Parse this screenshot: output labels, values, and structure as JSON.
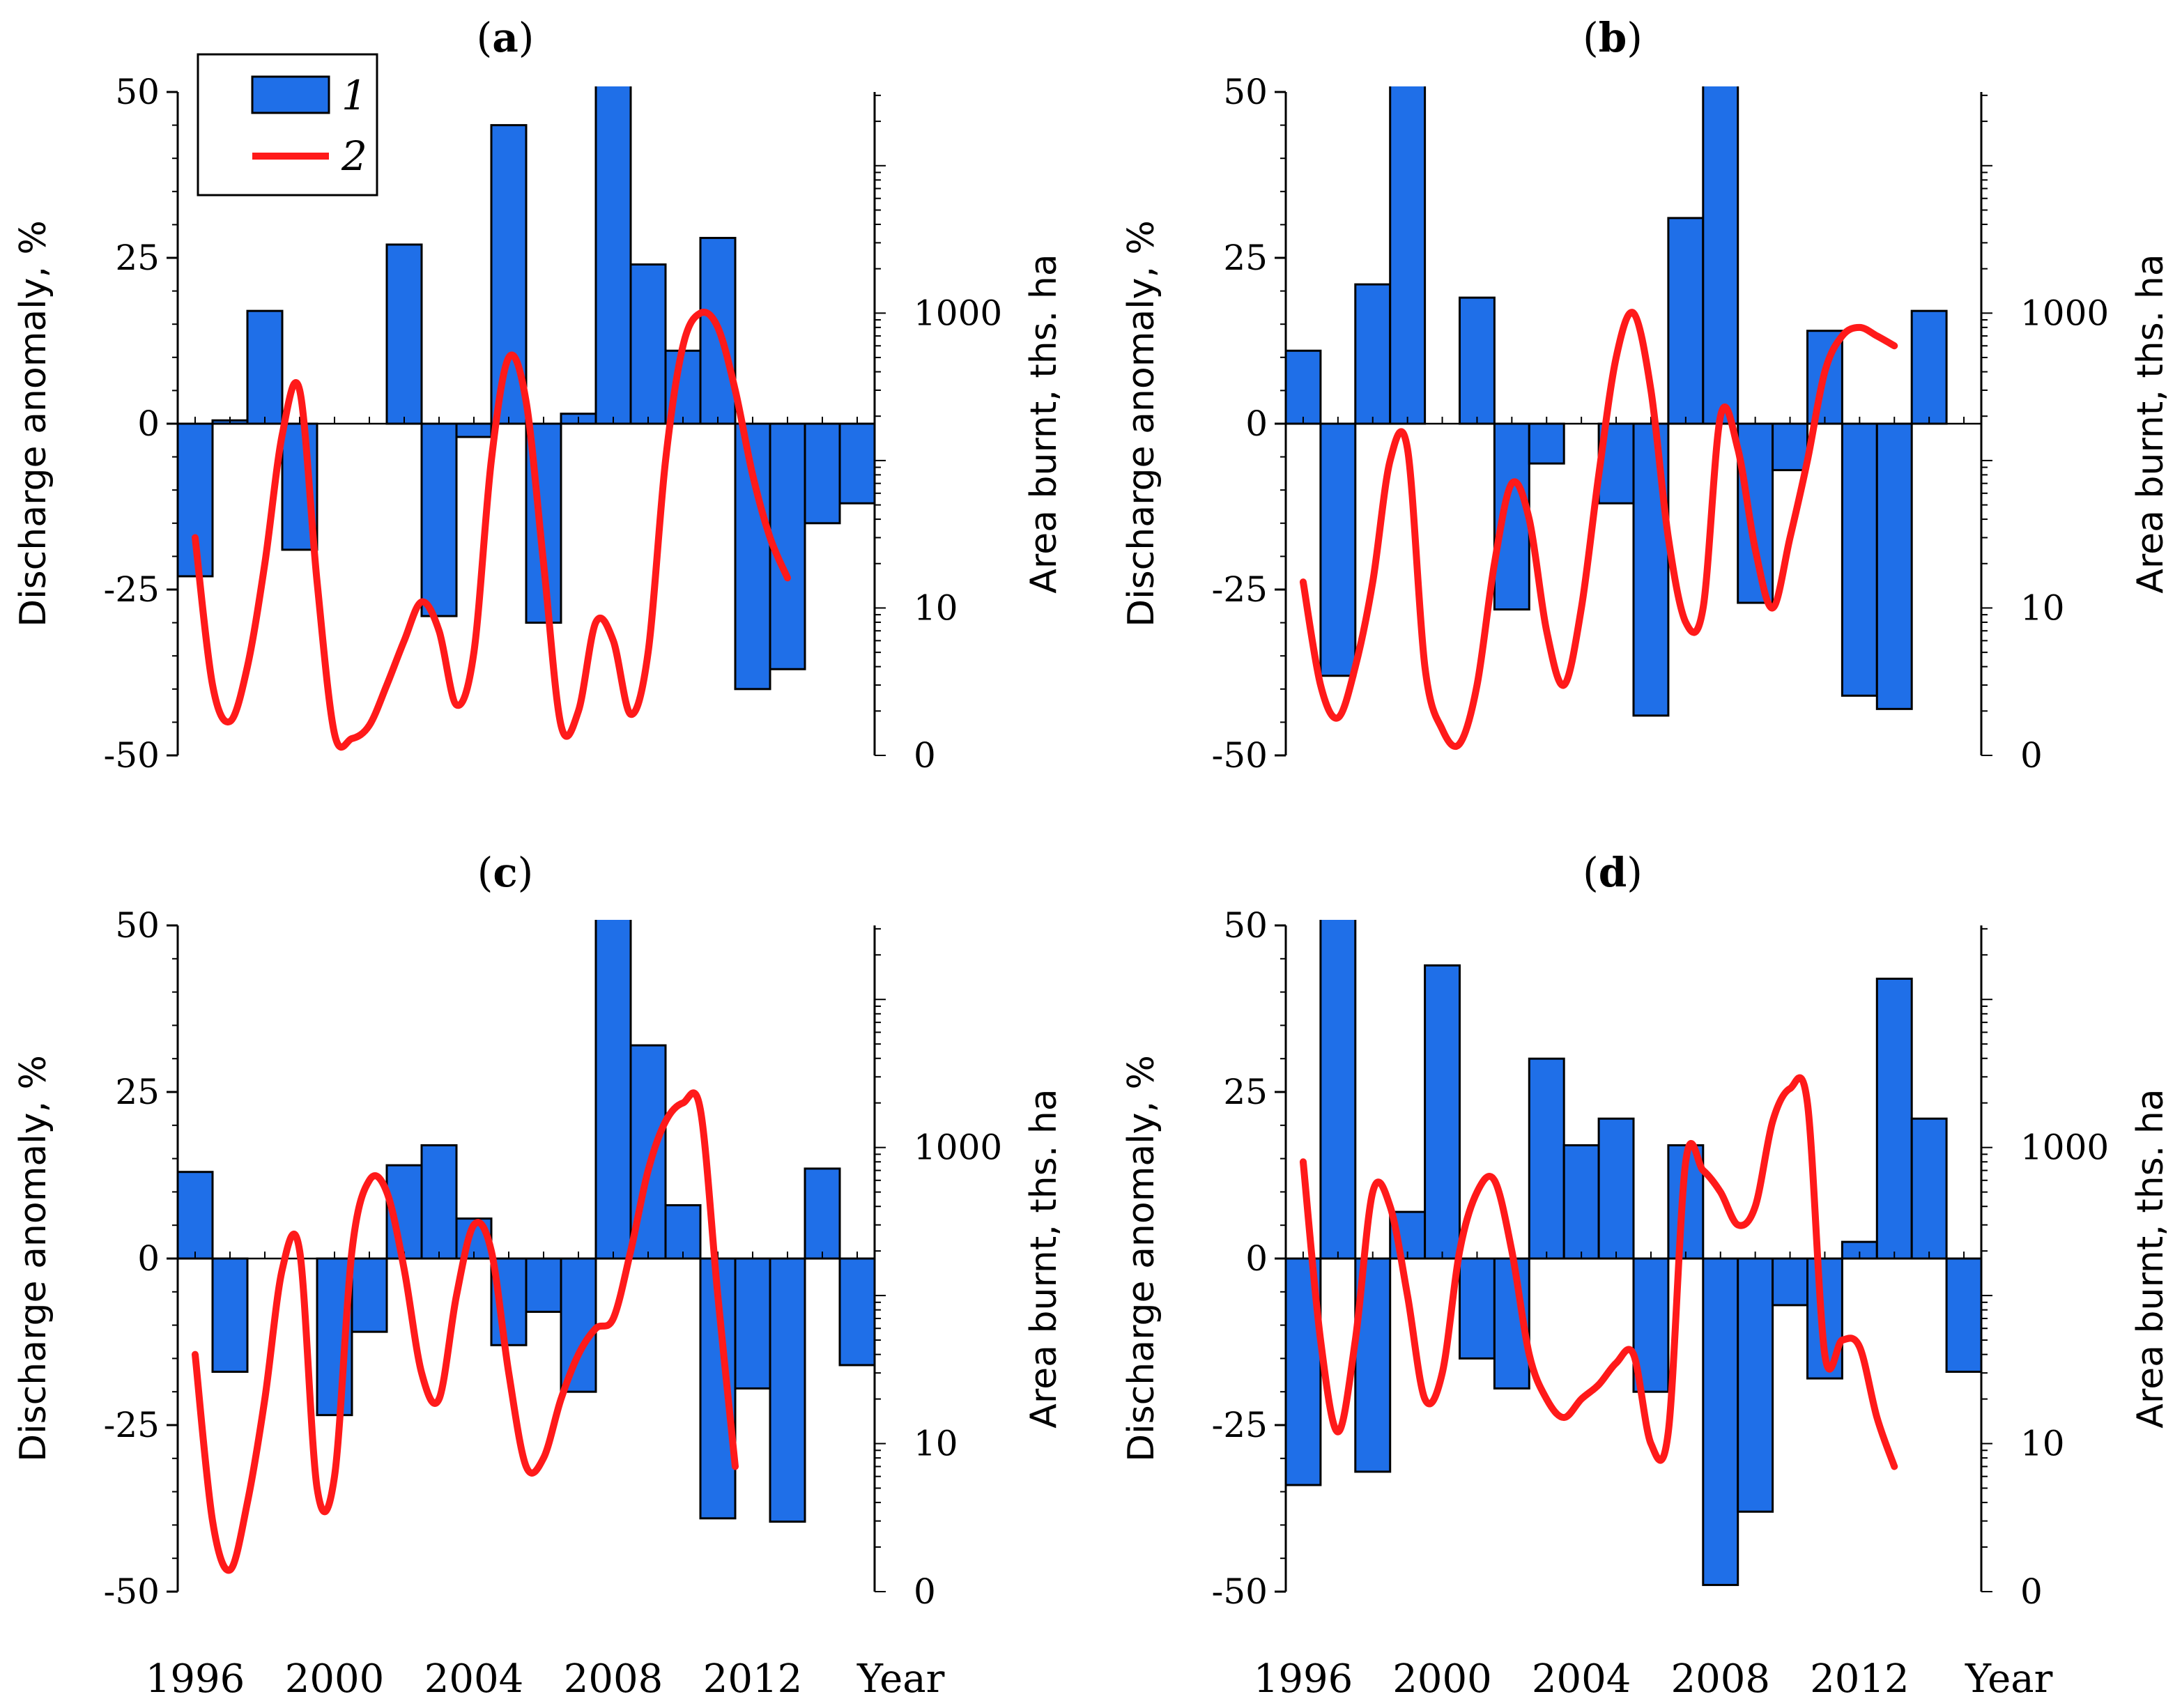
{
  "chart_data": {
    "type": "bar+line",
    "figure": {
      "x_axis_title": "Year",
      "x_tick_labels": [
        "1996",
        "2000",
        "2004",
        "2008",
        "2012"
      ],
      "legend": [
        {
          "label": "1",
          "kind": "bar",
          "color": "#1f6fe8"
        },
        {
          "label": "2",
          "kind": "line",
          "color": "#ff1a1a"
        }
      ]
    },
    "axes": {
      "left": {
        "label": "Discharge anomaly, %",
        "range": [
          -50,
          50
        ],
        "ticks": [
          "-50",
          "-25",
          "0",
          "25",
          "50"
        ],
        "tick_values": [
          -50,
          -25,
          0,
          25,
          50
        ]
      },
      "right": {
        "label": "Area burnt, ths. ha",
        "scale": "log",
        "ticks": [
          "0",
          "10",
          "1000"
        ],
        "tick_values": [
          1,
          10,
          1000
        ],
        "range_log": [
          0,
          4.5
        ]
      },
      "x": {
        "range": [
          1995.5,
          2015.5
        ]
      }
    },
    "panels": [
      {
        "title": "(a)",
        "title_letter": "a",
        "years": [
          1996,
          1997,
          1998,
          1999,
          2000,
          2001,
          2002,
          2003,
          2004,
          2005,
          2006,
          2007,
          2008,
          2009,
          2010,
          2011,
          2012,
          2013,
          2014,
          2015
        ],
        "discharge_anomaly": [
          -23,
          0.5,
          17,
          -19,
          0,
          0,
          27,
          -29,
          -2,
          45,
          -30,
          1.5,
          52,
          24,
          11,
          28,
          -40,
          -37,
          -15,
          -12
        ],
        "area_burnt": [
          [
            1996,
            30
          ],
          [
            1996.5,
            3
          ],
          [
            1997,
            1.7
          ],
          [
            1997.5,
            4
          ],
          [
            1998,
            20
          ],
          [
            1998.5,
            150
          ],
          [
            1999,
            300
          ],
          [
            1999.5,
            15
          ],
          [
            2000,
            1.4
          ],
          [
            2000.5,
            1.3
          ],
          [
            2001,
            1.6
          ],
          [
            2001.5,
            3
          ],
          [
            2002,
            6
          ],
          [
            2002.5,
            11
          ],
          [
            2003,
            7
          ],
          [
            2003.5,
            2.2
          ],
          [
            2004,
            5
          ],
          [
            2004.5,
            100
          ],
          [
            2005,
            500
          ],
          [
            2005.5,
            250
          ],
          [
            2006,
            20
          ],
          [
            2006.5,
            1.6
          ],
          [
            2007,
            2
          ],
          [
            2007.5,
            8
          ],
          [
            2008,
            6
          ],
          [
            2008.5,
            1.9
          ],
          [
            2009,
            5
          ],
          [
            2009.5,
            100
          ],
          [
            2010,
            600
          ],
          [
            2010.5,
            1000
          ],
          [
            2011,
            800
          ],
          [
            2011.5,
            300
          ],
          [
            2012,
            80
          ],
          [
            2012.5,
            30
          ],
          [
            2013,
            16
          ]
        ]
      },
      {
        "title": "(b)",
        "title_letter": "b",
        "years": [
          1996,
          1997,
          1998,
          1999,
          2000,
          2001,
          2002,
          2003,
          2004,
          2005,
          2006,
          2007,
          2008,
          2009,
          2010,
          2011,
          2012,
          2013,
          2014,
          2015
        ],
        "discharge_anomaly": [
          11,
          -38,
          21,
          52,
          0,
          19,
          -28,
          -6,
          0,
          -12,
          -44,
          31,
          52,
          -27,
          -7,
          14,
          -41,
          -43,
          17,
          0
        ],
        "area_burnt": [
          [
            1996,
            15
          ],
          [
            1996.5,
            3
          ],
          [
            1997,
            1.8
          ],
          [
            1997.5,
            4
          ],
          [
            1998,
            15
          ],
          [
            1998.5,
            100
          ],
          [
            1999,
            120
          ],
          [
            1999.5,
            4
          ],
          [
            2000,
            1.5
          ],
          [
            2000.5,
            1.2
          ],
          [
            2001,
            3
          ],
          [
            2001.5,
            20
          ],
          [
            2002,
            70
          ],
          [
            2002.5,
            40
          ],
          [
            2003,
            7
          ],
          [
            2003.5,
            3
          ],
          [
            2004,
            10
          ],
          [
            2004.5,
            80
          ],
          [
            2005,
            500
          ],
          [
            2005.5,
            1000
          ],
          [
            2006,
            300
          ],
          [
            2006.5,
            30
          ],
          [
            2007,
            8
          ],
          [
            2007.5,
            10
          ],
          [
            2008,
            200
          ],
          [
            2008.5,
            120
          ],
          [
            2009,
            25
          ],
          [
            2009.5,
            10
          ],
          [
            2010,
            30
          ],
          [
            2010.5,
            100
          ],
          [
            2011,
            400
          ],
          [
            2011.5,
            700
          ],
          [
            2012,
            800
          ],
          [
            2012.5,
            700
          ],
          [
            2013,
            600
          ]
        ]
      },
      {
        "title": "(c)",
        "title_letter": "c",
        "years": [
          1996,
          1997,
          1998,
          1999,
          2000,
          2001,
          2002,
          2003,
          2004,
          2005,
          2006,
          2007,
          2008,
          2009,
          2010,
          2011,
          2012,
          2013,
          2014,
          2015
        ],
        "discharge_anomaly": [
          13,
          -17,
          0,
          0,
          -23.5,
          -11,
          14,
          17,
          6,
          -13,
          -8,
          -20,
          52,
          32,
          8,
          -39,
          -19.5,
          -39.5,
          13.5,
          -16
        ],
        "area_burnt": [
          [
            1996,
            40
          ],
          [
            1996.5,
            3
          ],
          [
            1997,
            1.4
          ],
          [
            1997.5,
            4
          ],
          [
            1998,
            20
          ],
          [
            1998.5,
            150
          ],
          [
            1999,
            200
          ],
          [
            1999.5,
            5
          ],
          [
            2000,
            6
          ],
          [
            2000.5,
            200
          ],
          [
            2001,
            600
          ],
          [
            2001.5,
            500
          ],
          [
            2002,
            150
          ],
          [
            2002.5,
            30
          ],
          [
            2003,
            20
          ],
          [
            2003.5,
            100
          ],
          [
            2004,
            300
          ],
          [
            2004.5,
            200
          ],
          [
            2005,
            30
          ],
          [
            2005.5,
            7
          ],
          [
            2006,
            8
          ],
          [
            2006.5,
            20
          ],
          [
            2007,
            40
          ],
          [
            2007.5,
            60
          ],
          [
            2008,
            70
          ],
          [
            2008.5,
            200
          ],
          [
            2009,
            700
          ],
          [
            2009.5,
            1500
          ],
          [
            2010,
            2000
          ],
          [
            2010.5,
            1800
          ],
          [
            2011,
            100
          ],
          [
            2011.5,
            7
          ]
        ]
      },
      {
        "title": "(d)",
        "title_letter": "d",
        "years": [
          1996,
          1997,
          1998,
          1999,
          2000,
          2001,
          2002,
          2003,
          2004,
          2005,
          2006,
          2007,
          2008,
          2009,
          2010,
          2011,
          2012,
          2013,
          2014,
          2015
        ],
        "discharge_anomaly": [
          -34,
          52,
          -32,
          7,
          44,
          -15,
          -19.5,
          30,
          17,
          21,
          -20,
          17,
          -49,
          -38,
          -7,
          -18,
          2.5,
          42,
          21,
          -17
        ],
        "area_burnt": [
          [
            1996,
            800
          ],
          [
            1996.5,
            50
          ],
          [
            1997,
            12
          ],
          [
            1997.5,
            50
          ],
          [
            1998,
            500
          ],
          [
            1998.5,
            400
          ],
          [
            1999,
            100
          ],
          [
            1999.5,
            20
          ],
          [
            2000,
            30
          ],
          [
            2000.5,
            200
          ],
          [
            2001,
            500
          ],
          [
            2001.5,
            600
          ],
          [
            2002,
            200
          ],
          [
            2002.5,
            40
          ],
          [
            2003,
            20
          ],
          [
            2003.5,
            15
          ],
          [
            2004,
            20
          ],
          [
            2004.5,
            25
          ],
          [
            2005,
            35
          ],
          [
            2005.5,
            40
          ],
          [
            2006,
            10
          ],
          [
            2006.5,
            12
          ],
          [
            2007,
            800
          ],
          [
            2007.5,
            700
          ],
          [
            2008,
            500
          ],
          [
            2008.5,
            300
          ],
          [
            2009,
            400
          ],
          [
            2009.5,
            1500
          ],
          [
            2010,
            2500
          ],
          [
            2010.5,
            2000
          ],
          [
            2011,
            40
          ],
          [
            2011.5,
            50
          ],
          [
            2012,
            45
          ],
          [
            2012.5,
            15
          ],
          [
            2013,
            7
          ]
        ]
      }
    ]
  }
}
